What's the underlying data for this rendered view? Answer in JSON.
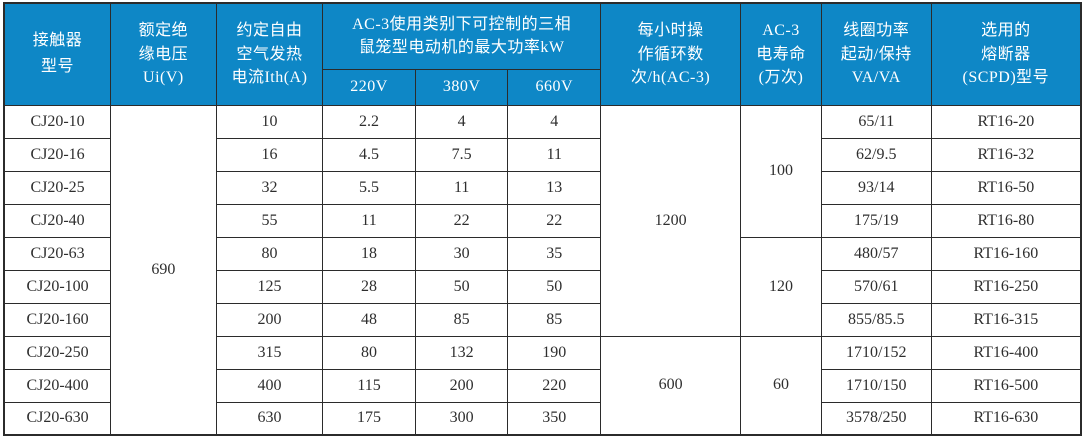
{
  "table": {
    "header": {
      "model": [
        "接触器",
        "型号"
      ],
      "rated_voltage": [
        "额定绝",
        "缘电压",
        "Ui(V)"
      ],
      "thermal_current": [
        "约定自由",
        "空气发热",
        "电流Ith(A)"
      ],
      "kw_group": [
        "AC-3使用类别下可控制的三相",
        "鼠笼型电动机的最大功率kW"
      ],
      "kw_220": "220V",
      "kw_380": "380V",
      "kw_660": "660V",
      "cycles": [
        "每小时操",
        "作循环数",
        "次/h(AC-3)"
      ],
      "life": [
        "AC-3",
        "电寿命",
        "(万次)"
      ],
      "coil_power": [
        "线圈功率",
        "起动/保持",
        "VA/VA"
      ],
      "fuse": [
        "选用的",
        "熔断器",
        "(SCPD)型号"
      ]
    },
    "merged": {
      "rated_voltage_all": "690",
      "cycles_rows_1_7": "1200",
      "cycles_rows_8_10": "600",
      "life_rows_1_4": "100",
      "life_rows_5_7": "120",
      "life_rows_8_10": "60"
    },
    "rows": [
      {
        "model": "CJ20-10",
        "ith": "10",
        "kw220": "2.2",
        "kw380": "4",
        "kw660": "4",
        "coil": "65/11",
        "fuse": "RT16-20"
      },
      {
        "model": "CJ20-16",
        "ith": "16",
        "kw220": "4.5",
        "kw380": "7.5",
        "kw660": "11",
        "coil": "62/9.5",
        "fuse": "RT16-32"
      },
      {
        "model": "CJ20-25",
        "ith": "32",
        "kw220": "5.5",
        "kw380": "11",
        "kw660": "13",
        "coil": "93/14",
        "fuse": "RT16-50"
      },
      {
        "model": "CJ20-40",
        "ith": "55",
        "kw220": "11",
        "kw380": "22",
        "kw660": "22",
        "coil": "175/19",
        "fuse": "RT16-80"
      },
      {
        "model": "CJ20-63",
        "ith": "80",
        "kw220": "18",
        "kw380": "30",
        "kw660": "35",
        "coil": "480/57",
        "fuse": "RT16-160"
      },
      {
        "model": "CJ20-100",
        "ith": "125",
        "kw220": "28",
        "kw380": "50",
        "kw660": "50",
        "coil": "570/61",
        "fuse": "RT16-250"
      },
      {
        "model": "CJ20-160",
        "ith": "200",
        "kw220": "48",
        "kw380": "85",
        "kw660": "85",
        "coil": "855/85.5",
        "fuse": "RT16-315"
      },
      {
        "model": "CJ20-250",
        "ith": "315",
        "kw220": "80",
        "kw380": "132",
        "kw660": "190",
        "coil": "1710/152",
        "fuse": "RT16-400"
      },
      {
        "model": "CJ20-400",
        "ith": "400",
        "kw220": "115",
        "kw380": "200",
        "kw660": "220",
        "coil": "1710/150",
        "fuse": "RT16-500"
      },
      {
        "model": "CJ20-630",
        "ith": "630",
        "kw220": "175",
        "kw380": "300",
        "kw660": "350",
        "coil": "3578/250",
        "fuse": "RT16-630"
      }
    ],
    "colors": {
      "header_bg": "#0e87c6",
      "header_text": "#ffffff",
      "border": "#2b2b2b",
      "body_text": "#2e2e2e"
    }
  }
}
